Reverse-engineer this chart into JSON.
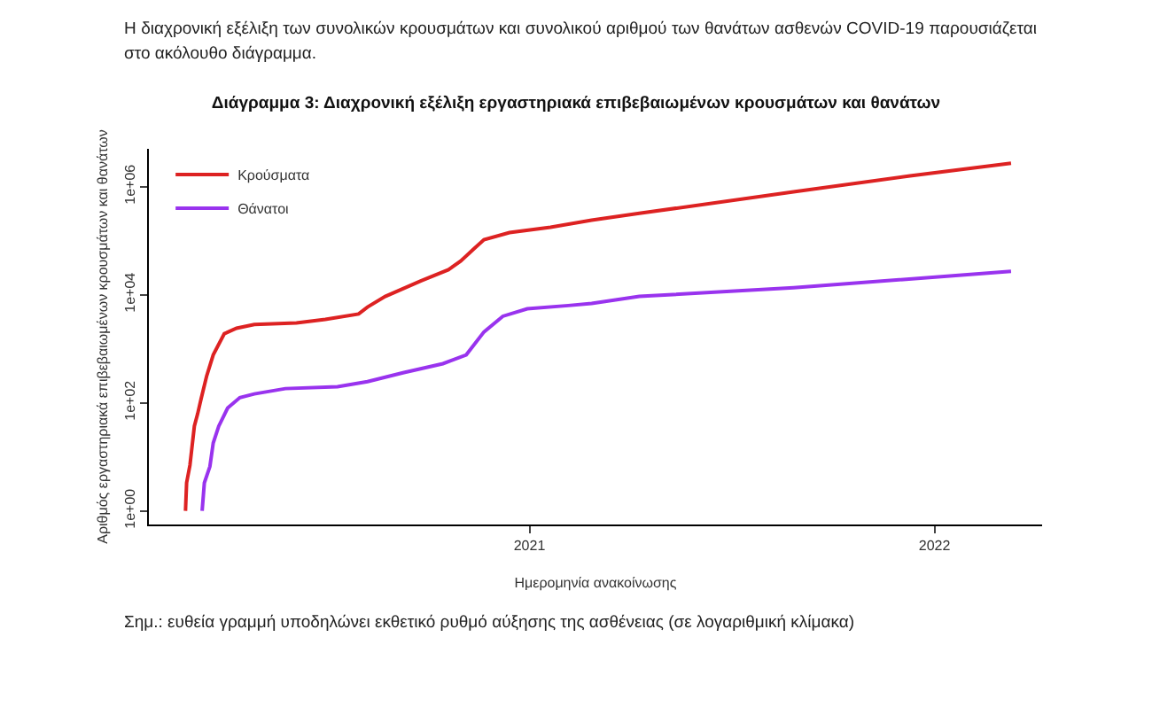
{
  "chart_data": {
    "type": "line",
    "title": "Διάγραμμα 3: Διαχρονική εξέλιξη εργαστηριακά επιβεβαιωμένων κρουσμάτων και θανάτων",
    "xlabel": "Ημερομηνία ανακοίνωσης",
    "ylabel": "Αριθμός εργαστηριακά επιβεβαιωμένων κρουσμάτων και θανάτων",
    "annotations": [
      "Η διαχρονική εξέλιξη των συνολικών κρουσμάτων και συνολικού αριθμού των θανάτων ασθενών COVID-19 παρουσιάζεται στο ακόλουθο διάγραμμα.",
      "Σημ.: ευθεία γραμμή υποδηλώνει εκθετικό ρυθμό αύξησης της ασθένειας (σε λογαριθμική κλίμακα)"
    ],
    "series": [
      {
        "name": "Κρούσματα",
        "color": "#dd2222",
        "x": [
          "2020-02-26",
          "2020-02-27",
          "2020-03-01",
          "2020-03-05",
          "2020-03-08",
          "2020-03-11",
          "2020-03-16",
          "2020-03-22",
          "2020-04-01",
          "2020-04-12",
          "2020-04-28",
          "2020-06-05",
          "2020-07-01",
          "2020-07-31",
          "2020-08-08",
          "2020-08-24",
          "2020-09-25",
          "2020-10-20",
          "2020-10-31",
          "2020-11-12",
          "2020-11-21",
          "2020-12-14",
          "2021-01-20",
          "2021-02-26",
          "2021-04-10",
          "2021-08-27",
          "2021-12-10",
          "2022-03-11"
        ],
        "values": [
          1,
          3.3,
          7,
          37,
          63,
          117,
          310,
          770,
          1900,
          2400,
          2800,
          3000,
          3500,
          4400,
          5900,
          9300,
          18000,
          29000,
          42000,
          71000,
          104000,
          141000,
          177000,
          240000,
          320000,
          800000,
          1580000,
          2700000
        ]
      },
      {
        "name": "Θάνατοι",
        "color": "#9933ee",
        "x": [
          "2020-03-12",
          "2020-03-14",
          "2020-03-19",
          "2020-03-22",
          "2020-03-27",
          "2020-04-04",
          "2020-04-15",
          "2020-04-28",
          "2020-05-26",
          "2020-07-12",
          "2020-08-08",
          "2020-09-09",
          "2020-10-15",
          "2020-11-05",
          "2020-11-21",
          "2020-12-08",
          "2020-12-30",
          "2021-02-05",
          "2021-02-26",
          "2021-04-10",
          "2021-08-27",
          "2022-03-11"
        ],
        "values": [
          1,
          3.3,
          6.6,
          18,
          37,
          80,
          125,
          146,
          183,
          198,
          246,
          360,
          530,
          770,
          2050,
          4000,
          5500,
          6300,
          6900,
          9300,
          13500,
          27000
        ]
      }
    ],
    "log": "y",
    "xlim": [
      "2020-01-24",
      "2022-04-08"
    ],
    "xticks": [
      {
        "value": "2021-01-01",
        "label": "2021"
      },
      {
        "value": "2022-01-01",
        "label": "2022"
      }
    ],
    "ylim": [
      0.56,
      5000000
    ],
    "yticks": [
      {
        "value": 1,
        "label": "1e+00"
      },
      {
        "value": 100,
        "label": "1e+02"
      },
      {
        "value": 10000,
        "label": "1e+04"
      },
      {
        "value": 1000000,
        "label": "1e+06"
      }
    ],
    "grid": false,
    "legend": "top left",
    "line_style": "solid",
    "marker": "none"
  }
}
